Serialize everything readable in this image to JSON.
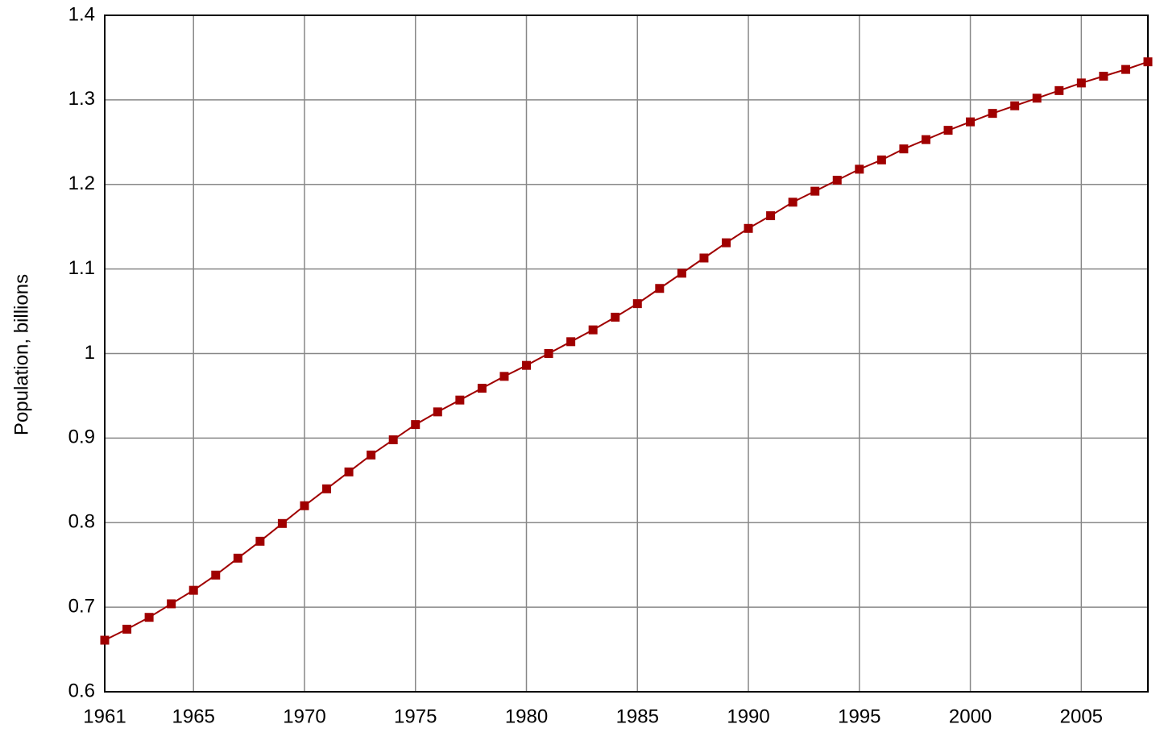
{
  "chart_data": {
    "type": "line",
    "y_label": "Population, billions",
    "x": [
      1961,
      1962,
      1963,
      1964,
      1965,
      1966,
      1967,
      1968,
      1969,
      1970,
      1971,
      1972,
      1973,
      1974,
      1975,
      1976,
      1977,
      1978,
      1979,
      1980,
      1981,
      1982,
      1983,
      1984,
      1985,
      1986,
      1987,
      1988,
      1989,
      1990,
      1991,
      1992,
      1993,
      1994,
      1995,
      1996,
      1997,
      1998,
      1999,
      2000,
      2001,
      2002,
      2003,
      2004,
      2005,
      2006,
      2007,
      2008
    ],
    "series": [
      {
        "color": "#a00000",
        "values": [
          0.661,
          0.674,
          0.688,
          0.704,
          0.72,
          0.738,
          0.758,
          0.778,
          0.799,
          0.82,
          0.84,
          0.86,
          0.88,
          0.898,
          0.916,
          0.931,
          0.945,
          0.959,
          0.973,
          0.986,
          1.0,
          1.014,
          1.028,
          1.043,
          1.059,
          1.077,
          1.095,
          1.113,
          1.131,
          1.148,
          1.163,
          1.179,
          1.192,
          1.205,
          1.218,
          1.229,
          1.242,
          1.253,
          1.264,
          1.274,
          1.284,
          1.293,
          1.302,
          1.311,
          1.32,
          1.328,
          1.336,
          1.345
        ]
      }
    ],
    "xlim": [
      1961,
      2008
    ],
    "xticks": [
      1961,
      1965,
      1970,
      1975,
      1980,
      1985,
      1990,
      1995,
      2000,
      2005
    ],
    "ylim": [
      0.6,
      1.4
    ],
    "yticks": [
      0.6,
      0.7,
      0.8,
      0.9,
      1,
      1.1,
      1.2,
      1.3,
      1.4
    ],
    "grid": true
  }
}
